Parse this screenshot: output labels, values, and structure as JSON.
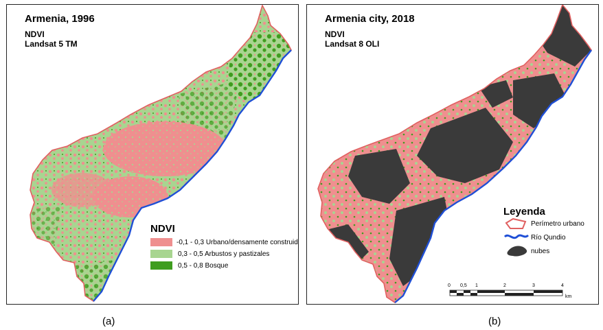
{
  "panel_a": {
    "title": "Armenia, 1996",
    "index": "NDVI",
    "sensor": "Landsat 5 TM",
    "legend": {
      "title": "NDVI",
      "items": [
        {
          "range": "-0,1 - 0,3",
          "label": "Urbano/densamente construido",
          "color": "#ef8f8f"
        },
        {
          "range": "0,3 - 0,5",
          "label": "Arbustos y pastizales",
          "color": "#a8d590"
        },
        {
          "range": "0,5 - 0,8",
          "label": "Bosque",
          "color": "#3f9d1f"
        }
      ]
    },
    "caption": "(a)"
  },
  "panel_b": {
    "title": "Armenia city, 2018",
    "index": "NDVI",
    "sensor": "Landsat 8 OLI",
    "legend": {
      "title": "Leyenda",
      "items": [
        {
          "label": "Perímetro urbano",
          "icon": "urban-perimeter-icon",
          "color": "#e06060"
        },
        {
          "label": "Río Qundio",
          "icon": "river-icon",
          "color": "#1f4fd6"
        },
        {
          "label": "nubes",
          "icon": "clouds-icon",
          "color": "#3a3a3a"
        }
      ]
    },
    "scalebar": {
      "ticks": [
        "0",
        "0,5",
        "1",
        "2",
        "3",
        "4"
      ],
      "unit": "km"
    },
    "caption": "(b)"
  },
  "colors": {
    "urban": "#ef8f8f",
    "shrub": "#a8d590",
    "forest": "#3f9d1f",
    "clouds": "#3a3a3a",
    "river": "#1f4fd6",
    "perimeter": "#e06060"
  }
}
